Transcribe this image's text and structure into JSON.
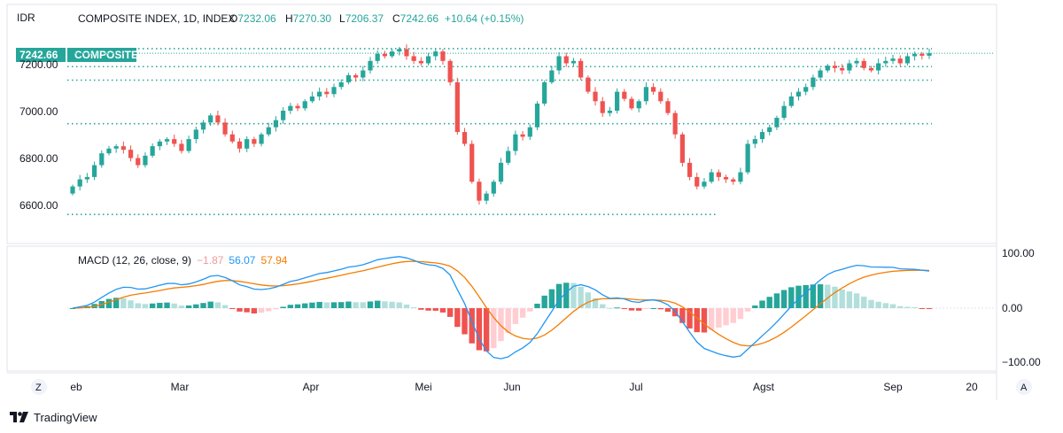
{
  "chart_data": [
    {
      "type": "candlestick",
      "currency_label": "IDR",
      "title": "COMPOSITE INDEX, 1D, INDEX",
      "ohlc": {
        "open_label": "O",
        "open": "7232.06",
        "high_label": "H",
        "high": "7270.30",
        "low_label": "L",
        "low": "7206.37",
        "close_label": "C",
        "close": "7242.66",
        "change": "+10.64 (+0.15%)"
      },
      "last_price_label": "7242.66",
      "series_label": "COMPOSITE",
      "y_ticks": [
        "7200.00",
        "7000.00",
        "6800.00",
        "6600.00"
      ],
      "ylim": [
        6540,
        7300
      ],
      "horizontal_levels": [
        7262,
        7186,
        7129,
        6945,
        6562
      ],
      "x_ticks": [
        "eb",
        "Mar",
        "Apr",
        "Mei",
        "Jun",
        "Jul",
        "Agst",
        "Sep",
        "20"
      ],
      "closes": [
        6680,
        6710,
        6720,
        6770,
        6820,
        6840,
        6850,
        6835,
        6800,
        6770,
        6810,
        6850,
        6870,
        6880,
        6860,
        6830,
        6880,
        6920,
        6950,
        6980,
        6950,
        6900,
        6870,
        6840,
        6880,
        6860,
        6900,
        6930,
        6960,
        7000,
        7020,
        7010,
        7040,
        7060,
        7080,
        7070,
        7100,
        7120,
        7150,
        7140,
        7170,
        7210,
        7240,
        7230,
        7250,
        7260,
        7230,
        7210,
        7200,
        7230,
        7250,
        7210,
        7120,
        6910,
        6860,
        6700,
        6620,
        6650,
        6700,
        6780,
        6830,
        6900,
        6890,
        6930,
        7030,
        7120,
        7170,
        7230,
        7200,
        7210,
        7140,
        7080,
        7040,
        6990,
        7000,
        7080,
        7050,
        7010,
        7040,
        7100,
        7080,
        7040,
        6990,
        6900,
        6780,
        6720,
        6680,
        6700,
        6740,
        6720,
        6710,
        6700,
        6740,
        6860,
        6880,
        6910,
        6930,
        6970,
        7020,
        7060,
        7080,
        7100,
        7140,
        7170,
        7190,
        7180,
        7170,
        7200,
        7210,
        7180,
        7170,
        7200,
        7210,
        7220,
        7200,
        7230,
        7240,
        7232.06,
        7242.66
      ],
      "macd_indicator": {
        "label": "MACD (12, 26, close, 9)",
        "histogram_value": "−1.87",
        "macd_value": "56.07",
        "signal_value": "57.94",
        "y_ticks": [
          "100.00",
          "0.00",
          "−100.00"
        ],
        "ylim": [
          -115,
          110
        ]
      }
    }
  ],
  "colors": {
    "up": "#26a69a",
    "down": "#ef5350",
    "macd_line": "#2196f3",
    "signal_line": "#f57c00",
    "hist_up_strong": "#26a69a",
    "hist_up_weak": "#b2dfdb",
    "hist_down_strong": "#ef5350",
    "hist_down_weak": "#ffcdd2",
    "grid_border": "#e0e3eb",
    "text": "#131722"
  },
  "brand": "TradingView",
  "icons": {
    "left_axis_button": "Z",
    "right_axis_button": "A"
  }
}
